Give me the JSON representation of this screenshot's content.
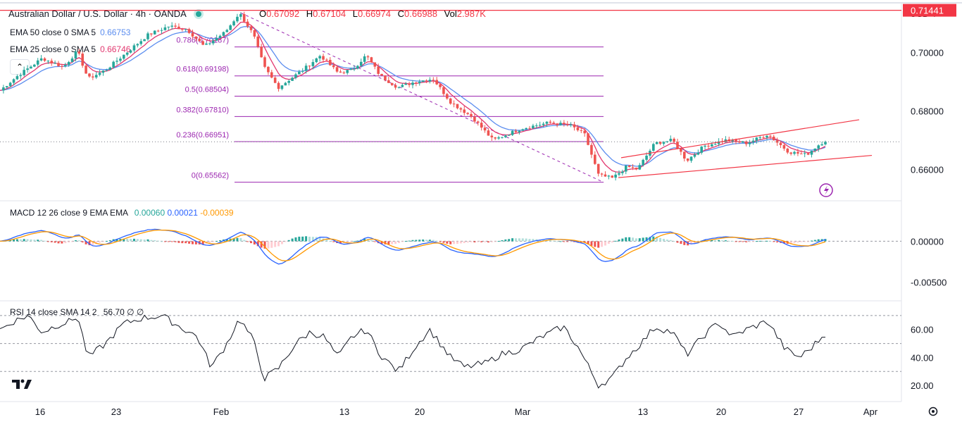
{
  "header": {
    "symbol_title": "Australian Dollar / U.S. Dollar · 4h · OANDA",
    "o_label": "O",
    "o_value": "0.67092",
    "h_label": "H",
    "h_value": "0.67104",
    "l_label": "L",
    "l_value": "0.66974",
    "c_label": "C",
    "c_value": "0.66988",
    "vol_label": "Vol",
    "vol_value": "2.987K",
    "currency": "USD"
  },
  "indicators": {
    "ema50_label": "EMA 50 close 0 SMA 5",
    "ema50_value": "0.66753",
    "ema25_label": "EMA 25 close 0 SMA 5",
    "ema25_value": "0.66746",
    "macd_label": "MACD 12 26 close 9 EMA EMA",
    "macd_v1": "0.00060",
    "macd_v2": "0.00021",
    "macd_v3": "-0.00039",
    "rsi_label": "RSI 14 close SMA 14 2",
    "rsi_value": "56.70",
    "rsi_extra": "∅ ∅"
  },
  "colors": {
    "up": "#26a69a",
    "down": "#ef5350",
    "ema50": "#5b8def",
    "ema25": "#e2376f",
    "fib": "#9c27b0",
    "channel": "#f23645",
    "macd_line": "#2962ff",
    "signal_line": "#ff9800",
    "price_tag": "#f23645"
  },
  "icons": [
    "collapse-chevron-up-icon",
    "lightning-icon",
    "tradingview-logo-icon",
    "settings-gear-icon"
  ],
  "chart_data": {
    "type": "candlestick",
    "price_axis": {
      "ticks": [
        "0.70000",
        "0.68000",
        "0.66000"
      ],
      "tag": "0.71441",
      "range": [
        0.65,
        0.716
      ]
    },
    "time_axis": {
      "labels": [
        "16",
        "23",
        "Feb",
        "13",
        "20",
        "Mar",
        "13",
        "20",
        "27",
        "Apr"
      ]
    },
    "fibonacci": [
      {
        "label": "0.786(0.70187)",
        "value": 0.70187
      },
      {
        "label": "0.618(0.69198)",
        "value": 0.69198
      },
      {
        "label": "0.5(0.68504)",
        "value": 0.68504
      },
      {
        "label": "0.382(0.67810)",
        "value": 0.6781
      },
      {
        "label": "0.236(0.66951)",
        "value": 0.66951
      },
      {
        "label": "0(0.65562)",
        "value": 0.65562
      }
    ],
    "horizontal_line": 0.71441,
    "price_keypoints": [
      [
        0,
        0.687
      ],
      [
        25,
        0.692
      ],
      [
        60,
        0.698
      ],
      [
        90,
        0.695
      ],
      [
        110,
        0.7005
      ],
      [
        125,
        0.691
      ],
      [
        150,
        0.694
      ],
      [
        175,
        0.699
      ],
      [
        210,
        0.706
      ],
      [
        240,
        0.709
      ],
      [
        265,
        0.708
      ],
      [
        290,
        0.702
      ],
      [
        320,
        0.707
      ],
      [
        340,
        0.7135
      ],
      [
        360,
        0.706
      ],
      [
        375,
        0.695
      ],
      [
        395,
        0.688
      ],
      [
        430,
        0.694
      ],
      [
        455,
        0.699
      ],
      [
        480,
        0.693
      ],
      [
        500,
        0.694
      ],
      [
        520,
        0.699
      ],
      [
        540,
        0.692
      ],
      [
        565,
        0.688
      ],
      [
        590,
        0.69
      ],
      [
        615,
        0.691
      ],
      [
        640,
        0.683
      ],
      [
        670,
        0.678
      ],
      [
        700,
        0.67
      ],
      [
        740,
        0.674
      ],
      [
        780,
        0.676
      ],
      [
        810,
        0.675
      ],
      [
        830,
        0.672
      ],
      [
        850,
        0.658
      ],
      [
        870,
        0.657
      ],
      [
        890,
        0.661
      ],
      [
        905,
        0.66
      ],
      [
        930,
        0.669
      ],
      [
        955,
        0.67
      ],
      [
        975,
        0.663
      ],
      [
        1000,
        0.668
      ],
      [
        1030,
        0.67
      ],
      [
        1060,
        0.669
      ],
      [
        1090,
        0.672
      ],
      [
        1120,
        0.666
      ],
      [
        1145,
        0.665
      ],
      [
        1160,
        0.668
      ],
      [
        1172,
        0.6699
      ]
    ],
    "channel": {
      "upper": [
        [
          0,
          0.659
        ],
        [
          1220,
          0.677
        ]
      ],
      "lower": [
        [
          0,
          0.656
        ],
        [
          1238,
          0.6648
        ]
      ]
    },
    "macd": {
      "ticks": [
        "0.00000",
        "-0.00500"
      ],
      "range": [
        -0.007,
        0.0045
      ]
    },
    "rsi": {
      "ticks": [
        "60.00",
        "40.00",
        "20.00"
      ],
      "bands": [
        30,
        50,
        70
      ],
      "range": [
        10,
        78
      ],
      "keypoints": [
        [
          0,
          60
        ],
        [
          20,
          66
        ],
        [
          40,
          70
        ],
        [
          60,
          58
        ],
        [
          80,
          63
        ],
        [
          100,
          66
        ],
        [
          110,
          70
        ],
        [
          125,
          40
        ],
        [
          150,
          50
        ],
        [
          175,
          64
        ],
        [
          200,
          68
        ],
        [
          230,
          70
        ],
        [
          255,
          62
        ],
        [
          280,
          55
        ],
        [
          300,
          33
        ],
        [
          320,
          48
        ],
        [
          340,
          68
        ],
        [
          360,
          52
        ],
        [
          375,
          25
        ],
        [
          395,
          32
        ],
        [
          420,
          50
        ],
        [
          440,
          58
        ],
        [
          460,
          55
        ],
        [
          480,
          40
        ],
        [
          500,
          55
        ],
        [
          520,
          60
        ],
        [
          540,
          42
        ],
        [
          565,
          30
        ],
        [
          590,
          48
        ],
        [
          610,
          60
        ],
        [
          640,
          40
        ],
        [
          660,
          33
        ],
        [
          690,
          36
        ],
        [
          710,
          42
        ],
        [
          740,
          46
        ],
        [
          770,
          55
        ],
        [
          800,
          62
        ],
        [
          820,
          48
        ],
        [
          850,
          20
        ],
        [
          870,
          26
        ],
        [
          890,
          40
        ],
        [
          910,
          50
        ],
        [
          930,
          62
        ],
        [
          955,
          58
        ],
        [
          975,
          42
        ],
        [
          1000,
          56
        ],
        [
          1020,
          65
        ],
        [
          1040,
          55
        ],
        [
          1060,
          60
        ],
        [
          1090,
          66
        ],
        [
          1115,
          46
        ],
        [
          1135,
          40
        ],
        [
          1150,
          46
        ],
        [
          1172,
          57
        ]
      ]
    }
  }
}
